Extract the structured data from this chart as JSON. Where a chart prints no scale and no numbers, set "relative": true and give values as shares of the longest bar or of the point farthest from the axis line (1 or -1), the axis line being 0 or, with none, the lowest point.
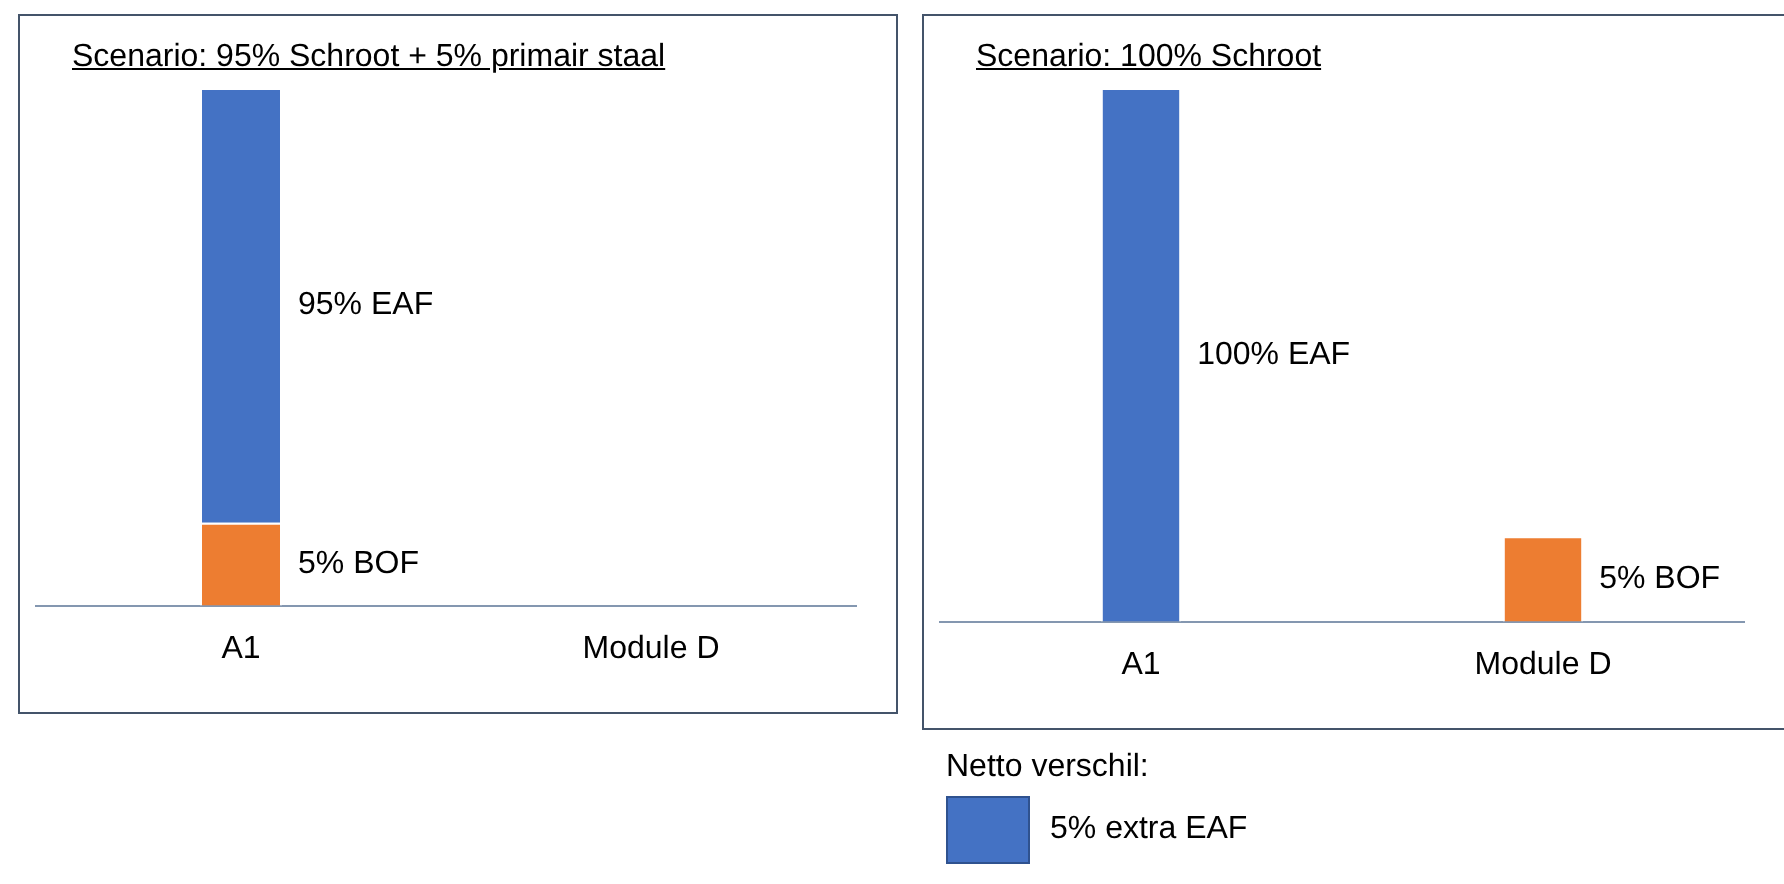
{
  "chart_data": [
    {
      "type": "bar",
      "title": "Scenario: 95% Schroot + 5% primair staal",
      "categories": [
        "A1",
        "Module D"
      ],
      "stacked": true,
      "relative": true,
      "legend": false,
      "grid": false,
      "series": [
        {
          "name": "5% BOF",
          "color": "#ed7d31",
          "values": [
            0.16,
            null
          ]
        },
        {
          "name": "95% EAF",
          "color": "#4472c4",
          "values": [
            0.84,
            null
          ]
        }
      ]
    },
    {
      "type": "bar",
      "title": "Scenario: 100% Schroot",
      "categories": [
        "A1",
        "Module D"
      ],
      "stacked": true,
      "relative": true,
      "legend": false,
      "grid": false,
      "series": [
        {
          "name": "100% EAF",
          "color": "#4472c4",
          "values": [
            1,
            null
          ]
        },
        {
          "name": "5% BOF",
          "color": "#ed7d31",
          "values": [
            null,
            0.16
          ]
        }
      ],
      "annotations": [
        "Netto verschil:",
        "5% extra EAF"
      ]
    }
  ]
}
